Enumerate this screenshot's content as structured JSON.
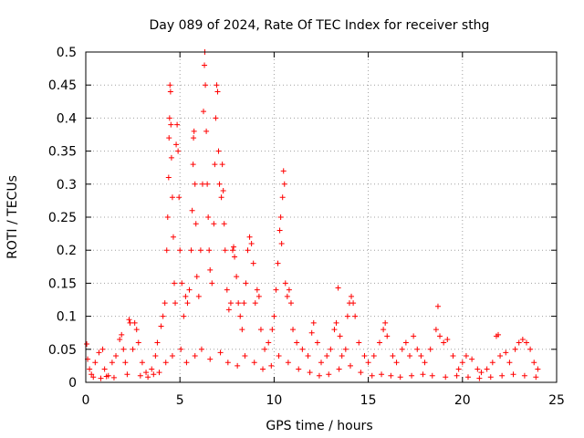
{
  "chart_data": {
    "type": "scatter",
    "title": "Day 089 of 2024, Rate Of TEC Index for receiver sthg",
    "xlabel": "GPS time / hours",
    "ylabel": "ROTI / TECUs",
    "xlim": [
      0,
      25
    ],
    "ylim": [
      0,
      0.5
    ],
    "xticks": [
      0,
      5,
      10,
      15,
      20,
      25
    ],
    "xtick_labels": [
      "0",
      "5",
      "10",
      "15",
      "20",
      "25"
    ],
    "yticks": [
      0,
      0.05,
      0.1,
      0.15,
      0.2,
      0.25,
      0.3,
      0.35,
      0.4,
      0.45,
      0.5
    ],
    "ytick_labels": [
      "0",
      "0.05",
      "0.1",
      "0.15",
      "0.2",
      "0.25",
      "0.3",
      "0.35",
      "0.4",
      "0.45",
      "0.5"
    ],
    "grid": true,
    "marker": "+",
    "color": "#ff0000",
    "series": [
      {
        "name": "ROTI",
        "points": [
          [
            0.05,
            0.058
          ],
          [
            0.1,
            0.035
          ],
          [
            0.2,
            0.02
          ],
          [
            0.3,
            0.012
          ],
          [
            0.5,
            0.03
          ],
          [
            0.7,
            0.045
          ],
          [
            0.9,
            0.05
          ],
          [
            1.0,
            0.02
          ],
          [
            1.2,
            0.01
          ],
          [
            1.4,
            0.03
          ],
          [
            1.6,
            0.04
          ],
          [
            1.8,
            0.065
          ],
          [
            1.9,
            0.072
          ],
          [
            2.0,
            0.05
          ],
          [
            2.1,
            0.03
          ],
          [
            2.3,
            0.095
          ],
          [
            2.35,
            0.09
          ],
          [
            2.5,
            0.05
          ],
          [
            2.6,
            0.09
          ],
          [
            2.7,
            0.08
          ],
          [
            2.8,
            0.06
          ],
          [
            3.0,
            0.03
          ],
          [
            3.2,
            0.015
          ],
          [
            3.5,
            0.02
          ],
          [
            3.7,
            0.04
          ],
          [
            3.8,
            0.06
          ],
          [
            4.0,
            0.085
          ],
          [
            4.1,
            0.1
          ],
          [
            4.2,
            0.12
          ],
          [
            4.3,
            0.2
          ],
          [
            4.35,
            0.25
          ],
          [
            4.4,
            0.31
          ],
          [
            4.42,
            0.37
          ],
          [
            4.45,
            0.4
          ],
          [
            4.47,
            0.45
          ],
          [
            4.5,
            0.44
          ],
          [
            4.52,
            0.39
          ],
          [
            4.55,
            0.34
          ],
          [
            4.6,
            0.28
          ],
          [
            4.65,
            0.22
          ],
          [
            4.7,
            0.15
          ],
          [
            4.75,
            0.12
          ],
          [
            4.8,
            0.36
          ],
          [
            4.85,
            0.39
          ],
          [
            4.9,
            0.35
          ],
          [
            4.95,
            0.28
          ],
          [
            5.0,
            0.2
          ],
          [
            5.1,
            0.15
          ],
          [
            5.2,
            0.1
          ],
          [
            5.3,
            0.13
          ],
          [
            5.4,
            0.12
          ],
          [
            5.5,
            0.14
          ],
          [
            5.6,
            0.2
          ],
          [
            5.65,
            0.26
          ],
          [
            5.7,
            0.33
          ],
          [
            5.72,
            0.37
          ],
          [
            5.75,
            0.38
          ],
          [
            5.8,
            0.3
          ],
          [
            5.85,
            0.24
          ],
          [
            5.9,
            0.16
          ],
          [
            6.0,
            0.13
          ],
          [
            6.1,
            0.2
          ],
          [
            6.2,
            0.3
          ],
          [
            6.25,
            0.41
          ],
          [
            6.3,
            0.48
          ],
          [
            6.32,
            0.5
          ],
          [
            6.35,
            0.45
          ],
          [
            6.4,
            0.38
          ],
          [
            6.45,
            0.3
          ],
          [
            6.5,
            0.25
          ],
          [
            6.55,
            0.2
          ],
          [
            6.6,
            0.17
          ],
          [
            6.7,
            0.15
          ],
          [
            6.8,
            0.24
          ],
          [
            6.85,
            0.33
          ],
          [
            6.9,
            0.4
          ],
          [
            6.95,
            0.45
          ],
          [
            7.0,
            0.44
          ],
          [
            7.05,
            0.35
          ],
          [
            7.1,
            0.3
          ],
          [
            7.2,
            0.28
          ],
          [
            7.25,
            0.33
          ],
          [
            7.3,
            0.29
          ],
          [
            7.35,
            0.24
          ],
          [
            7.4,
            0.2
          ],
          [
            7.5,
            0.14
          ],
          [
            7.6,
            0.11
          ],
          [
            7.7,
            0.12
          ],
          [
            7.8,
            0.2
          ],
          [
            7.85,
            0.205
          ],
          [
            7.9,
            0.19
          ],
          [
            8.0,
            0.16
          ],
          [
            8.1,
            0.12
          ],
          [
            8.2,
            0.1
          ],
          [
            8.3,
            0.08
          ],
          [
            8.4,
            0.12
          ],
          [
            8.5,
            0.15
          ],
          [
            8.6,
            0.2
          ],
          [
            8.7,
            0.22
          ],
          [
            8.8,
            0.21
          ],
          [
            8.9,
            0.18
          ],
          [
            9.0,
            0.12
          ],
          [
            9.1,
            0.14
          ],
          [
            9.2,
            0.13
          ],
          [
            9.3,
            0.08
          ],
          [
            9.5,
            0.05
          ],
          [
            9.7,
            0.06
          ],
          [
            9.9,
            0.08
          ],
          [
            10.0,
            0.1
          ],
          [
            10.1,
            0.14
          ],
          [
            10.2,
            0.18
          ],
          [
            10.3,
            0.23
          ],
          [
            10.35,
            0.25
          ],
          [
            10.4,
            0.21
          ],
          [
            10.45,
            0.28
          ],
          [
            10.5,
            0.32
          ],
          [
            10.55,
            0.3
          ],
          [
            10.6,
            0.15
          ],
          [
            10.7,
            0.13
          ],
          [
            10.8,
            0.14
          ],
          [
            10.9,
            0.12
          ],
          [
            11.0,
            0.08
          ],
          [
            11.2,
            0.06
          ],
          [
            11.5,
            0.05
          ],
          [
            11.8,
            0.04
          ],
          [
            12.0,
            0.075
          ],
          [
            12.1,
            0.09
          ],
          [
            12.3,
            0.06
          ],
          [
            12.5,
            0.03
          ],
          [
            12.8,
            0.04
          ],
          [
            13.0,
            0.05
          ],
          [
            13.2,
            0.08
          ],
          [
            13.3,
            0.09
          ],
          [
            13.4,
            0.143
          ],
          [
            13.5,
            0.07
          ],
          [
            13.6,
            0.04
          ],
          [
            13.8,
            0.05
          ],
          [
            13.9,
            0.1
          ],
          [
            14.0,
            0.12
          ],
          [
            14.1,
            0.13
          ],
          [
            14.2,
            0.12
          ],
          [
            14.3,
            0.1
          ],
          [
            14.5,
            0.06
          ],
          [
            14.8,
            0.04
          ],
          [
            15.0,
            0.03
          ],
          [
            15.3,
            0.04
          ],
          [
            15.6,
            0.06
          ],
          [
            15.8,
            0.08
          ],
          [
            15.9,
            0.09
          ],
          [
            16.0,
            0.07
          ],
          [
            16.3,
            0.04
          ],
          [
            16.5,
            0.03
          ],
          [
            16.8,
            0.05
          ],
          [
            17.0,
            0.06
          ],
          [
            17.2,
            0.04
          ],
          [
            17.4,
            0.07
          ],
          [
            17.6,
            0.05
          ],
          [
            17.8,
            0.04
          ],
          [
            18.0,
            0.03
          ],
          [
            18.3,
            0.05
          ],
          [
            18.6,
            0.08
          ],
          [
            18.7,
            0.115
          ],
          [
            18.8,
            0.07
          ],
          [
            19.0,
            0.06
          ],
          [
            19.2,
            0.065
          ],
          [
            19.5,
            0.04
          ],
          [
            19.8,
            0.02
          ],
          [
            20.0,
            0.03
          ],
          [
            20.2,
            0.04
          ],
          [
            20.5,
            0.035
          ],
          [
            20.8,
            0.02
          ],
          [
            21.0,
            0.015
          ],
          [
            21.3,
            0.02
          ],
          [
            21.6,
            0.03
          ],
          [
            21.8,
            0.07
          ],
          [
            21.9,
            0.072
          ],
          [
            22.0,
            0.04
          ],
          [
            22.3,
            0.045
          ],
          [
            22.5,
            0.03
          ],
          [
            22.8,
            0.05
          ],
          [
            23.0,
            0.06
          ],
          [
            23.2,
            0.065
          ],
          [
            23.4,
            0.06
          ],
          [
            23.6,
            0.05
          ],
          [
            23.8,
            0.03
          ],
          [
            24.0,
            0.02
          ],
          [
            0.4,
            0.008
          ],
          [
            0.8,
            0.006
          ],
          [
            1.1,
            0.009
          ],
          [
            1.5,
            0.007
          ],
          [
            2.2,
            0.012
          ],
          [
            2.9,
            0.01
          ],
          [
            3.3,
            0.008
          ],
          [
            3.6,
            0.012
          ],
          [
            3.9,
            0.015
          ],
          [
            4.25,
            0.03
          ],
          [
            4.6,
            0.04
          ],
          [
            5.05,
            0.05
          ],
          [
            5.35,
            0.03
          ],
          [
            5.8,
            0.04
          ],
          [
            6.15,
            0.05
          ],
          [
            6.6,
            0.035
          ],
          [
            7.15,
            0.045
          ],
          [
            7.55,
            0.03
          ],
          [
            8.05,
            0.025
          ],
          [
            8.45,
            0.04
          ],
          [
            8.95,
            0.03
          ],
          [
            9.4,
            0.02
          ],
          [
            9.85,
            0.025
          ],
          [
            10.25,
            0.04
          ],
          [
            10.75,
            0.03
          ],
          [
            11.3,
            0.02
          ],
          [
            11.9,
            0.015
          ],
          [
            12.4,
            0.01
          ],
          [
            12.9,
            0.012
          ],
          [
            13.45,
            0.02
          ],
          [
            14.05,
            0.025
          ],
          [
            14.6,
            0.015
          ],
          [
            15.2,
            0.01
          ],
          [
            15.7,
            0.012
          ],
          [
            16.2,
            0.01
          ],
          [
            16.7,
            0.008
          ],
          [
            17.3,
            0.01
          ],
          [
            17.9,
            0.012
          ],
          [
            18.4,
            0.01
          ],
          [
            19.1,
            0.008
          ],
          [
            19.7,
            0.01
          ],
          [
            20.3,
            0.008
          ],
          [
            20.9,
            0.006
          ],
          [
            21.5,
            0.008
          ],
          [
            22.1,
            0.01
          ],
          [
            22.7,
            0.012
          ],
          [
            23.3,
            0.01
          ],
          [
            23.9,
            0.008
          ]
        ]
      }
    ]
  }
}
